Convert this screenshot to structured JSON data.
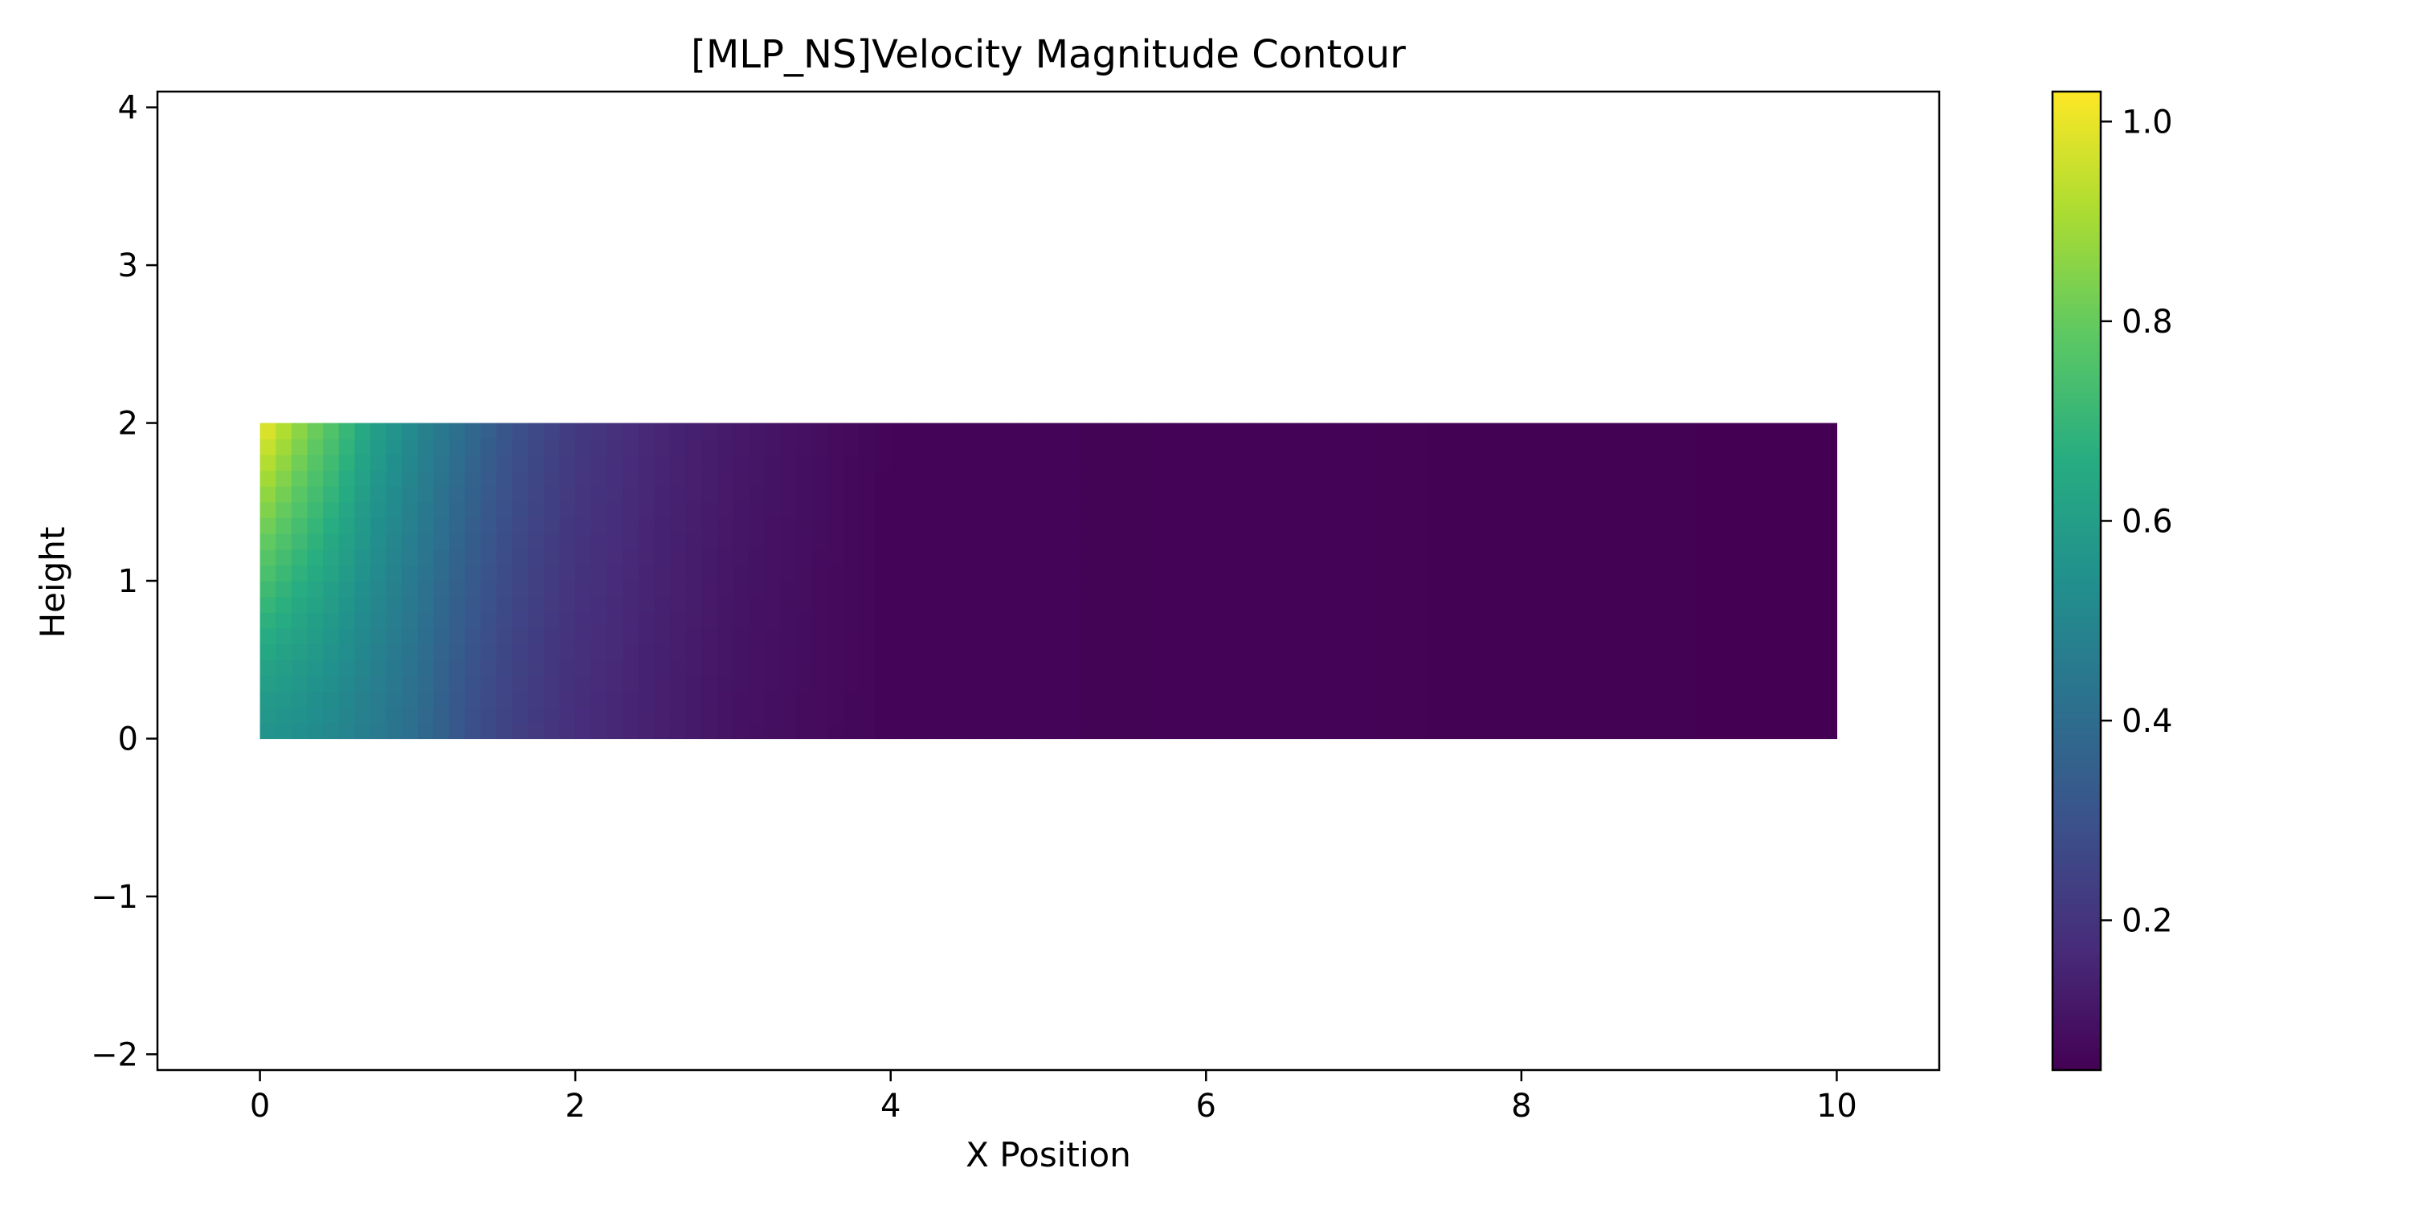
{
  "chart_data": {
    "type": "heatmap",
    "title": "[MLP_NS]Velocity Magnitude Contour",
    "xlabel": "X Position",
    "ylabel": "Height",
    "xlim": [
      -0.65,
      10.65
    ],
    "ylim": [
      -2.1,
      4.1
    ],
    "x_ticks": [
      0,
      2,
      4,
      6,
      8,
      10
    ],
    "x_tick_labels": [
      "0",
      "2",
      "4",
      "6",
      "8",
      "10"
    ],
    "y_ticks": [
      -2,
      -1,
      0,
      1,
      2,
      3,
      4
    ],
    "y_tick_labels": [
      "−2",
      "−1",
      "0",
      "1",
      "2",
      "3",
      "4"
    ],
    "grid": false,
    "colormap": "viridis",
    "domain_x": [
      0,
      10
    ],
    "domain_y": [
      0,
      2
    ],
    "grid_nx": 100,
    "grid_ny": 20,
    "value_range": [
      0.05,
      1.03
    ],
    "field_samples": {
      "x": [
        0.0,
        0.1,
        0.2,
        0.3,
        0.5,
        0.7,
        1.0,
        1.3,
        1.6,
        2.0,
        2.5,
        3.0,
        3.5,
        4.0,
        10.0
      ],
      "v_top": [
        1.02,
        0.96,
        0.9,
        0.84,
        0.74,
        0.62,
        0.5,
        0.4,
        0.3,
        0.22,
        0.16,
        0.12,
        0.09,
        0.06,
        0.05
      ],
      "v_bottom": [
        0.56,
        0.55,
        0.54,
        0.53,
        0.5,
        0.46,
        0.4,
        0.3,
        0.24,
        0.18,
        0.14,
        0.1,
        0.08,
        0.06,
        0.05
      ]
    },
    "colorbar": {
      "ticks": [
        0.2,
        0.4,
        0.6,
        0.8,
        1.0
      ],
      "tick_labels": [
        "0.2",
        "0.4",
        "0.6",
        "0.8",
        "1.0"
      ]
    }
  }
}
